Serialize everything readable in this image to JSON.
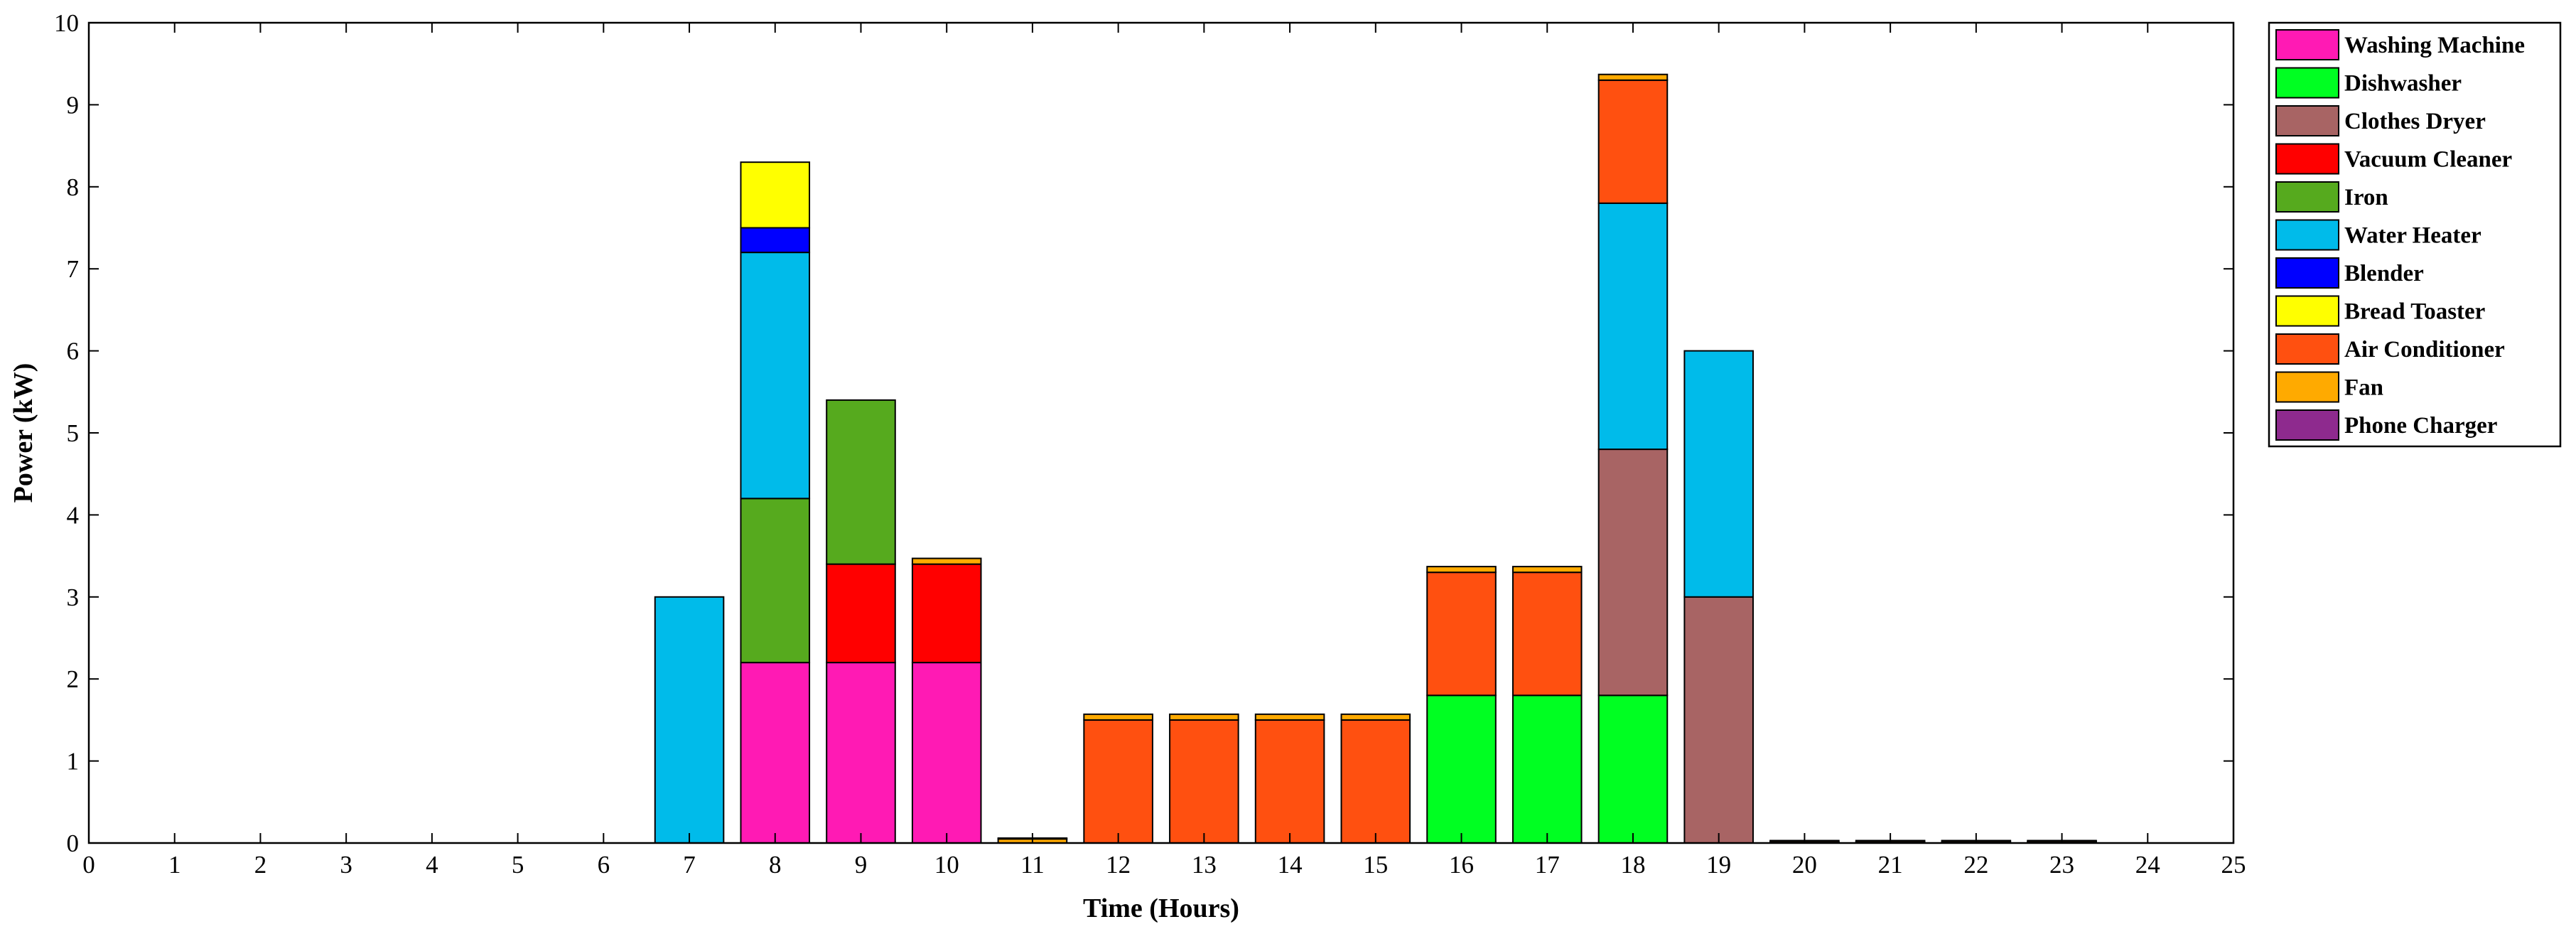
{
  "chart_data": {
    "type": "bar",
    "stacked": true,
    "xlabel": "Time (Hours)",
    "ylabel": "Power (kW)",
    "xlim": [
      0,
      25
    ],
    "ylim": [
      0,
      10
    ],
    "x_ticks": [
      0,
      1,
      2,
      3,
      4,
      5,
      6,
      7,
      8,
      9,
      10,
      11,
      12,
      13,
      14,
      15,
      16,
      17,
      18,
      19,
      20,
      21,
      22,
      23,
      24,
      25
    ],
    "y_ticks": [
      0,
      1,
      2,
      3,
      4,
      5,
      6,
      7,
      8,
      9,
      10
    ],
    "grid": false,
    "legend_position": "top-right-outside",
    "x": [
      1,
      2,
      3,
      4,
      5,
      6,
      7,
      8,
      9,
      10,
      11,
      12,
      13,
      14,
      15,
      16,
      17,
      18,
      19,
      20,
      21,
      22,
      23,
      24
    ],
    "series": [
      {
        "name": "Washing Machine",
        "color": "#ff1ab4",
        "values": [
          0,
          0,
          0,
          0,
          0,
          0,
          0,
          2.2,
          2.2,
          2.2,
          0,
          0,
          0,
          0,
          0,
          0,
          0,
          0,
          0,
          0,
          0,
          0,
          0,
          0
        ]
      },
      {
        "name": "Dishwasher",
        "color": "#00ff22",
        "values": [
          0,
          0,
          0,
          0,
          0,
          0,
          0,
          0,
          0,
          0,
          0,
          0,
          0,
          0,
          0,
          1.8,
          1.8,
          1.8,
          0,
          0,
          0,
          0,
          0,
          0
        ]
      },
      {
        "name": "Clothes Dryer",
        "color": "#a86464",
        "values": [
          0,
          0,
          0,
          0,
          0,
          0,
          0,
          0,
          0,
          0,
          0,
          0,
          0,
          0,
          0,
          0,
          0,
          3.0,
          3.0,
          0,
          0,
          0,
          0,
          0
        ]
      },
      {
        "name": "Vacuum Cleaner",
        "color": "#ff0000",
        "values": [
          0,
          0,
          0,
          0,
          0,
          0,
          0,
          0,
          1.2,
          1.2,
          0,
          0,
          0,
          0,
          0,
          0,
          0,
          0,
          0,
          0,
          0,
          0,
          0,
          0
        ]
      },
      {
        "name": "Iron",
        "color": "#56aa1e",
        "values": [
          0,
          0,
          0,
          0,
          0,
          0,
          0,
          2.0,
          2.0,
          0,
          0,
          0,
          0,
          0,
          0,
          0,
          0,
          0,
          0,
          0,
          0,
          0,
          0,
          0
        ]
      },
      {
        "name": "Water Heater",
        "color": "#00bbea",
        "values": [
          0,
          0,
          0,
          0,
          0,
          0,
          3.0,
          3.0,
          0,
          0,
          0,
          0,
          0,
          0,
          0,
          0,
          0,
          3.0,
          3.0,
          0,
          0,
          0,
          0,
          0
        ]
      },
      {
        "name": "Blender",
        "color": "#0000ff",
        "values": [
          0,
          0,
          0,
          0,
          0,
          0,
          0,
          0.3,
          0,
          0,
          0,
          0,
          0,
          0,
          0,
          0,
          0,
          0,
          0,
          0,
          0,
          0,
          0,
          0
        ]
      },
      {
        "name": "Bread Toaster",
        "color": "#ffff00",
        "values": [
          0,
          0,
          0,
          0,
          0,
          0,
          0,
          0.8,
          0,
          0,
          0,
          0,
          0,
          0,
          0,
          0,
          0,
          0,
          0,
          0,
          0,
          0,
          0,
          0
        ]
      },
      {
        "name": "Air Conditioner",
        "color": "#ff5010",
        "values": [
          0,
          0,
          0,
          0,
          0,
          0,
          0,
          0,
          0,
          0,
          0,
          1.5,
          1.5,
          1.5,
          1.5,
          1.5,
          1.5,
          1.5,
          0,
          0,
          0,
          0,
          0,
          0
        ]
      },
      {
        "name": "Fan",
        "color": "#ffaa00",
        "values": [
          0,
          0,
          0,
          0,
          0,
          0,
          0,
          0,
          0,
          0.07,
          0.05,
          0.07,
          0.07,
          0.07,
          0.07,
          0.07,
          0.07,
          0.07,
          0,
          0.02,
          0.02,
          0.02,
          0.02,
          0
        ]
      },
      {
        "name": "Phone Charger",
        "color": "#8e2a8e",
        "values": [
          0,
          0,
          0,
          0,
          0,
          0,
          0,
          0,
          0,
          0,
          0.01,
          0,
          0,
          0,
          0,
          0,
          0,
          0,
          0,
          0.01,
          0.01,
          0.01,
          0.01,
          0
        ]
      }
    ]
  }
}
